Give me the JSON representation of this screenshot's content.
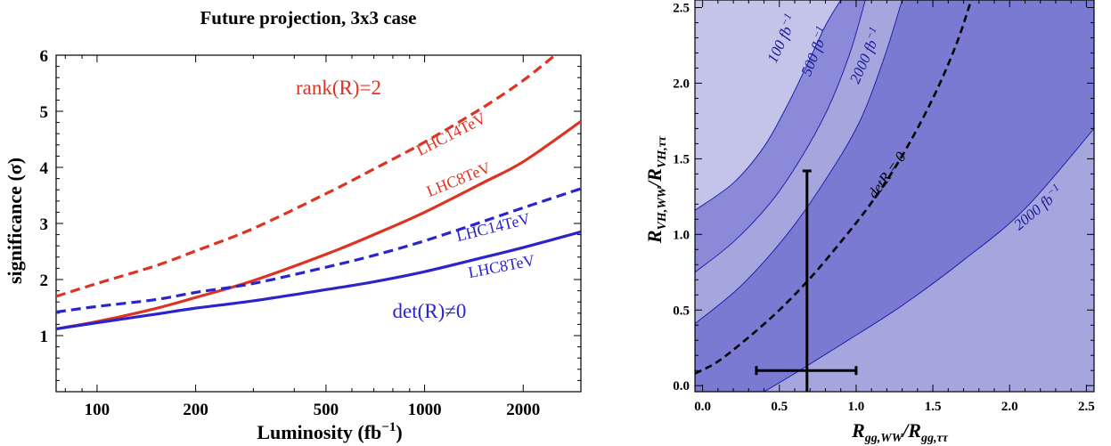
{
  "chart_data": [
    {
      "type": "line",
      "title": "Future projection, 3x3 case",
      "xlabel": "Luminosity (fb",
      "xlabel_sup": "−1",
      "xlabel_close": ")",
      "ylabel": "significance (σ)",
      "xscale": "log",
      "xlim": [
        75,
        3000
      ],
      "ylim": [
        0,
        6
      ],
      "xticks": [
        100,
        200,
        500,
        1000,
        2000
      ],
      "yticks": [
        1,
        2,
        3,
        4,
        5,
        6
      ],
      "colors": {
        "red": "#dd3322",
        "blue": "#2b24cc"
      },
      "series": [
        {
          "name": "LHC14TeV",
          "group": "rank",
          "color": "#dd3322",
          "dash": true,
          "x": [
            75,
            100,
            150,
            200,
            300,
            500,
            700,
            1000,
            1500,
            2000,
            2500
          ],
          "y": [
            1.7,
            1.93,
            2.24,
            2.51,
            2.91,
            3.53,
            3.97,
            4.45,
            5.06,
            5.55,
            6.0
          ]
        },
        {
          "name": "LHC8TeV",
          "group": "rank",
          "color": "#dd3322",
          "dash": false,
          "x": [
            75,
            100,
            150,
            200,
            300,
            500,
            700,
            1000,
            1500,
            2000,
            3000
          ],
          "y": [
            1.12,
            1.25,
            1.48,
            1.68,
            1.98,
            2.45,
            2.8,
            3.2,
            3.72,
            4.1,
            4.82
          ]
        },
        {
          "name": "LHC14TeV",
          "group": "det",
          "color": "#2b24cc",
          "dash": true,
          "x": [
            75,
            100,
            150,
            200,
            300,
            500,
            700,
            1000,
            1500,
            2000,
            3000
          ],
          "y": [
            1.42,
            1.52,
            1.64,
            1.77,
            1.93,
            2.22,
            2.43,
            2.69,
            3.03,
            3.28,
            3.62
          ]
        },
        {
          "name": "LHC8TeV",
          "group": "det",
          "color": "#2b24cc",
          "dash": false,
          "x": [
            75,
            100,
            150,
            200,
            300,
            500,
            700,
            1000,
            1500,
            2000,
            3000
          ],
          "y": [
            1.12,
            1.23,
            1.38,
            1.49,
            1.62,
            1.82,
            1.96,
            2.14,
            2.39,
            2.57,
            2.85
          ]
        }
      ],
      "annotations": {
        "rank": "rank(R)=2",
        "det": "det(R)≠0"
      }
    },
    {
      "type": "contour",
      "xlabel": "R",
      "xlabel_sub_num": "gg,WW",
      "xlabel_sub_den": "gg,ττ",
      "ylabel": "R",
      "ylabel_sub_num": "VH,WW",
      "ylabel_sub_den": "VH,ττ",
      "xlim": [
        -0.05,
        2.55
      ],
      "ylim": [
        -0.04,
        2.55
      ],
      "xticks": [
        "0.0",
        "0.5",
        "1.0",
        "1.5",
        "2.0",
        "2.5"
      ],
      "yticks": [
        "0.0",
        "0.5",
        "1.0",
        "1.5",
        "2.0",
        "2.5"
      ],
      "region_colors": [
        "#a6a6de",
        "#8a8ad8",
        "#7a7ad2",
        "#c4c4ea"
      ],
      "contours": [
        {
          "label": "100 fb",
          "sup": "−1",
          "x": [
            -0.05,
            0.2,
            0.4,
            0.55,
            0.68,
            0.8,
            0.9
          ],
          "y": [
            1.16,
            1.34,
            1.58,
            1.85,
            2.12,
            2.38,
            2.55
          ]
        },
        {
          "label": "500 fb",
          "sup": "−1",
          "x": [
            -0.05,
            0.2,
            0.45,
            0.65,
            0.82,
            0.96,
            1.06
          ],
          "y": [
            0.75,
            0.95,
            1.22,
            1.52,
            1.84,
            2.2,
            2.55
          ]
        },
        {
          "label": "2000 fb",
          "sup": "−1",
          "x": [
            -0.05,
            0.25,
            0.55,
            0.8,
            1.02,
            1.18,
            1.3
          ],
          "y": [
            0.41,
            0.66,
            1.0,
            1.36,
            1.74,
            2.16,
            2.55
          ]
        },
        {
          "label": "2000 fb",
          "sup": "−1",
          "x": [
            0.4,
            0.6,
            0.9,
            1.3,
            1.7,
            2.1,
            2.55
          ],
          "y": [
            -0.04,
            0.08,
            0.27,
            0.53,
            0.83,
            1.17,
            1.7
          ]
        }
      ],
      "detR": {
        "label": "detR = 0",
        "x": [
          -0.05,
          0.1,
          0.3,
          0.5,
          0.7,
          0.9,
          1.1,
          1.3,
          1.5,
          1.65,
          1.75
        ],
        "y": [
          0.08,
          0.16,
          0.32,
          0.5,
          0.71,
          0.95,
          1.21,
          1.52,
          1.9,
          2.25,
          2.55
        ]
      },
      "point": {
        "x": 0.68,
        "xerr_low": 0.35,
        "xerr_high": 1.0,
        "y": 0.1,
        "yerr_low": -0.04,
        "yerr_high": 1.42
      }
    }
  ]
}
